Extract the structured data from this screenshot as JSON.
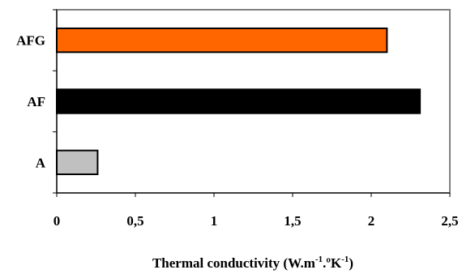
{
  "chart_data": {
    "type": "bar",
    "orientation": "horizontal",
    "categories": [
      "A",
      "AF",
      "AFG"
    ],
    "values": [
      0.26,
      2.31,
      2.1
    ],
    "colors": [
      "#c0c0c0",
      "#000000",
      "#ff6600"
    ],
    "xlim": [
      0,
      2.5
    ],
    "xticks": [
      "0",
      "0,5",
      "1",
      "1,5",
      "2",
      "2,5"
    ],
    "xtick_values": [
      0,
      0.5,
      1,
      1.5,
      2,
      2.5
    ],
    "xlabel": {
      "prefix": "Thermal conductivity (W.m",
      "exp1": "-1",
      "mid": ".ºK",
      "exp2": "-1",
      "suffix": ")"
    },
    "ylabel": "",
    "title": "",
    "grid": false,
    "legend": "none"
  }
}
